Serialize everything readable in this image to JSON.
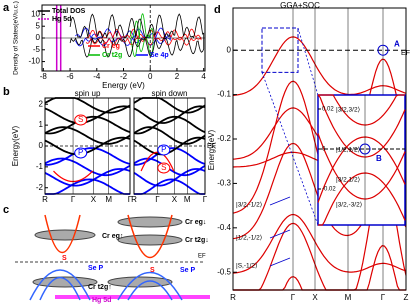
{
  "panel_a": {
    "label": "a",
    "xlabel": "Energy (eV)",
    "ylabel": "Density of States(eV/u.c.)",
    "xlim": [
      -8.1,
      4.1
    ],
    "ylim": [
      -14,
      14
    ],
    "xticks": [
      -8,
      -6,
      -4,
      -2,
      0,
      2,
      4
    ],
    "yticks": [
      -10,
      -5,
      0,
      5,
      10
    ],
    "legend": [
      {
        "name": "Total DOS",
        "color": "#000000"
      },
      {
        "name": "Hg 5d",
        "color": "#cc00cc"
      },
      {
        "name": "Cr eg",
        "color": "#ff0000"
      },
      {
        "name": "Cr t2g",
        "color": "#00bb00"
      },
      {
        "name": "Se 4p",
        "color": "#0000ff"
      }
    ]
  },
  "panel_b": {
    "label": "b",
    "ylabel": "Energy(eV)",
    "ylim": [
      -2.3,
      2.3
    ],
    "yticks": [
      -2,
      -1,
      0,
      1,
      2
    ],
    "fermi": "EF",
    "subplots": [
      {
        "title": "spin up",
        "kpoints": [
          "R",
          "Γ",
          "X",
          "M",
          "Γ"
        ],
        "marks": [
          "S",
          "P"
        ]
      },
      {
        "title": "spin down",
        "kpoints": [
          "R",
          "Γ",
          "X",
          "M",
          "Γ"
        ],
        "marks": [
          "P",
          "S"
        ]
      }
    ]
  },
  "panel_c": {
    "label": "c",
    "fermi": "EF",
    "left": [
      "S",
      "Cr eg↑",
      "Se P",
      "Cr t2g↑",
      "Hg 5d"
    ],
    "right": [
      "Cr eg↓",
      "Cr t2g↓",
      "S",
      "Se P"
    ]
  },
  "panel_d": {
    "label": "d",
    "title": "GGA+SOC",
    "ylabel": "Energy(eV)",
    "fermi": "EF",
    "ylim": [
      -0.54,
      0.095
    ],
    "yticks": [
      0,
      -0.1,
      -0.2,
      -0.3,
      -0.4,
      -0.5
    ],
    "kpoints": [
      "R",
      "Γ",
      "X",
      "M",
      "Γ",
      "Z"
    ],
    "point_a": "A",
    "kets": [
      "|3/2,-1/2⟩",
      "|1/2,-1/2⟩",
      "|S,-1/2⟩"
    ],
    "inset": {
      "yticks": [
        0.02,
        0,
        -0.02
      ],
      "ylim": [
        -0.038,
        0.027
      ],
      "point_b": "B",
      "kets": [
        "|3/2,3/2⟩",
        "|1/2,1/2⟩",
        "|3/2,1/2⟩",
        "|3/2,-3/2⟩"
      ]
    }
  }
}
